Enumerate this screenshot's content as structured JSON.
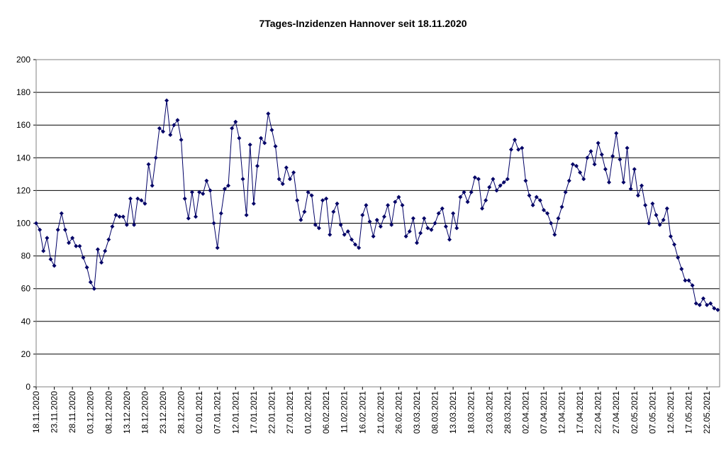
{
  "chart_data": {
    "type": "line",
    "title": "7Tages-Inzidenzen Hannover seit 18.11.2020",
    "categories": [
      "18.11.2020",
      null,
      null,
      null,
      null,
      "23.11.2020",
      null,
      null,
      null,
      null,
      "28.11.2020",
      null,
      null,
      null,
      null,
      "03.12.2020",
      null,
      null,
      null,
      null,
      "08.12.2020",
      null,
      null,
      null,
      null,
      "13.12.2020",
      null,
      null,
      null,
      null,
      "18.12.2020",
      null,
      null,
      null,
      null,
      "23.12.2020",
      null,
      null,
      null,
      null,
      "28.12.2020",
      null,
      null,
      null,
      null,
      "02.01.2021",
      null,
      null,
      null,
      null,
      "07.01.2021",
      null,
      null,
      null,
      null,
      "12.01.2021",
      null,
      null,
      null,
      null,
      "17.01.2021",
      null,
      null,
      null,
      null,
      "22.01.2021",
      null,
      null,
      null,
      null,
      "27.01.2021",
      null,
      null,
      null,
      null,
      "01.02.2021",
      null,
      null,
      null,
      null,
      "06.02.2021",
      null,
      null,
      null,
      null,
      "11.02.2021",
      null,
      null,
      null,
      null,
      "16.02.2021",
      null,
      null,
      null,
      null,
      "21.02.2021",
      null,
      null,
      null,
      null,
      "26.02.2021",
      null,
      null,
      null,
      null,
      "03.03.2021",
      null,
      null,
      null,
      null,
      "08.03.2021",
      null,
      null,
      null,
      null,
      "13.03.2021",
      null,
      null,
      null,
      null,
      "18.03.2021",
      null,
      null,
      null,
      null,
      "23.03.2021",
      null,
      null,
      null,
      null,
      "28.03.2021",
      null,
      null,
      null,
      null,
      "02.04.2021",
      null,
      null,
      null,
      null,
      "07.04.2021",
      null,
      null,
      null,
      null,
      "12.04.2021",
      null,
      null,
      null,
      null,
      "17.04.2021",
      null,
      null,
      null,
      null,
      "22.04.2021",
      null,
      null,
      null,
      null,
      "27.04.2021",
      null,
      null,
      null,
      null,
      "02.05.2021",
      null,
      null,
      null,
      null,
      "07.05.2021",
      null,
      null,
      null,
      null,
      "12.05.2021",
      null,
      null,
      null,
      null,
      "17.05.2021",
      null,
      null,
      null,
      null,
      "22.05.2021",
      null,
      null,
      null
    ],
    "values": [
      100,
      96,
      83,
      91,
      78,
      74,
      96,
      106,
      96,
      88,
      91,
      86,
      86,
      79,
      73,
      64,
      60,
      84,
      76,
      83,
      90,
      98,
      105,
      104,
      104,
      99,
      115,
      99,
      115,
      114,
      112,
      136,
      123,
      140,
      158,
      156,
      175,
      154,
      160,
      163,
      151,
      115,
      103,
      119,
      104,
      119,
      118,
      126,
      120,
      100,
      85,
      106,
      121,
      123,
      158,
      162,
      152,
      127,
      105,
      148,
      112,
      135,
      152,
      149,
      167,
      157,
      147,
      127,
      124,
      134,
      127,
      131,
      114,
      102,
      107,
      119,
      117,
      99,
      97,
      114,
      115,
      93,
      107,
      112,
      99,
      93,
      95,
      90,
      87,
      85,
      105,
      111,
      101,
      92,
      102,
      98,
      104,
      111,
      99,
      113,
      116,
      111,
      92,
      95,
      103,
      88,
      94,
      103,
      97,
      96,
      100,
      106,
      109,
      98,
      90,
      106,
      97,
      116,
      119,
      113,
      119,
      128,
      127,
      109,
      114,
      122,
      127,
      120,
      123,
      125,
      127,
      145,
      151,
      145,
      146,
      126,
      117,
      111,
      116,
      114,
      108,
      106,
      100,
      93,
      103,
      110,
      119,
      126,
      136,
      135,
      131,
      127,
      140,
      144,
      136,
      149,
      142,
      133,
      125,
      141,
      155,
      139,
      125,
      146,
      121,
      133,
      117,
      123,
      111,
      100,
      112,
      105,
      99,
      102,
      109,
      92,
      87,
      79,
      72,
      65,
      65,
      62,
      51,
      50,
      54,
      50,
      51,
      48,
      47
    ],
    "color": "#000066",
    "ylim": [
      0,
      200
    ],
    "yticks": [
      0,
      20,
      40,
      60,
      80,
      100,
      120,
      140,
      160,
      180,
      200
    ],
    "grid": true
  }
}
